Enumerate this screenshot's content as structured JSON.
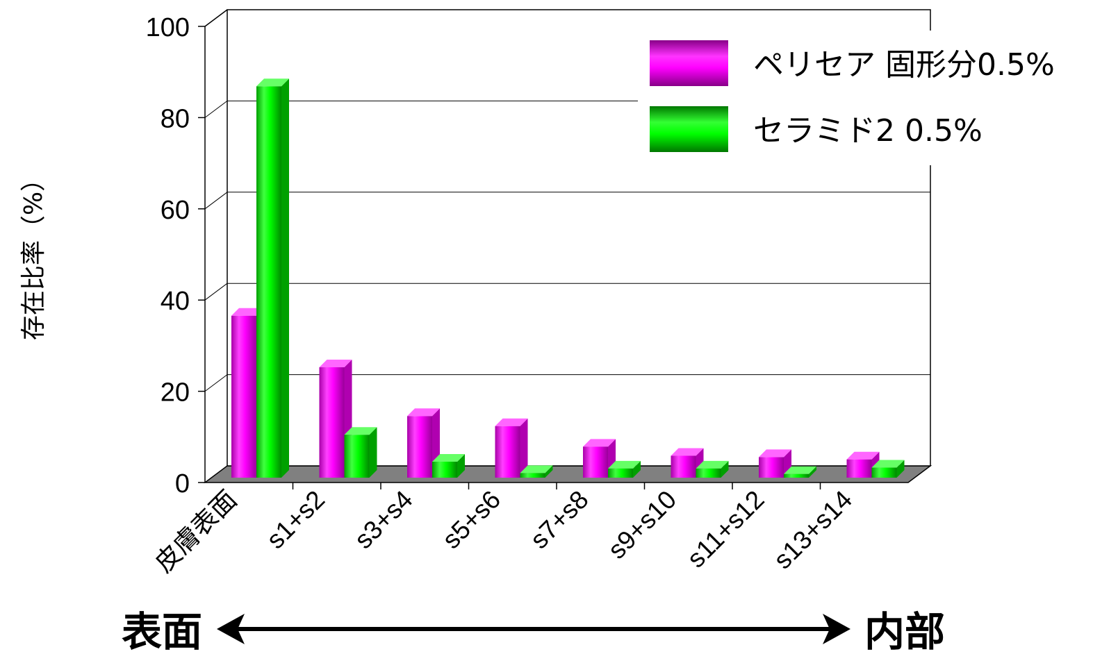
{
  "chart_data": {
    "type": "bar",
    "ylabel": "存在比率（%）",
    "ylim": [
      0,
      100
    ],
    "yticks": [
      "0",
      "20",
      "40",
      "60",
      "80",
      "100"
    ],
    "categories": [
      "皮膚表面",
      "s1+s2",
      "s3+s4",
      "s5+s6",
      "s7+s8",
      "s9+s10",
      "s11+s12",
      "s13+s14"
    ],
    "series": [
      {
        "name": "ペリセア 固形分0.5%",
        "color": "#ee00ee",
        "values": [
          35.5,
          24.2,
          13.5,
          11.3,
          6.8,
          4.8,
          4.5,
          4.0
        ]
      },
      {
        "name": "セラミド2 0.5%",
        "color": "#00dd00",
        "values": [
          85.8,
          9.4,
          3.5,
          1.0,
          2.0,
          2.0,
          0.8,
          2.2
        ]
      }
    ],
    "legend_position": "top-right",
    "grid": true,
    "three_d": true,
    "direction_arrow": {
      "left_label": "表面",
      "right_label": "内部"
    }
  }
}
